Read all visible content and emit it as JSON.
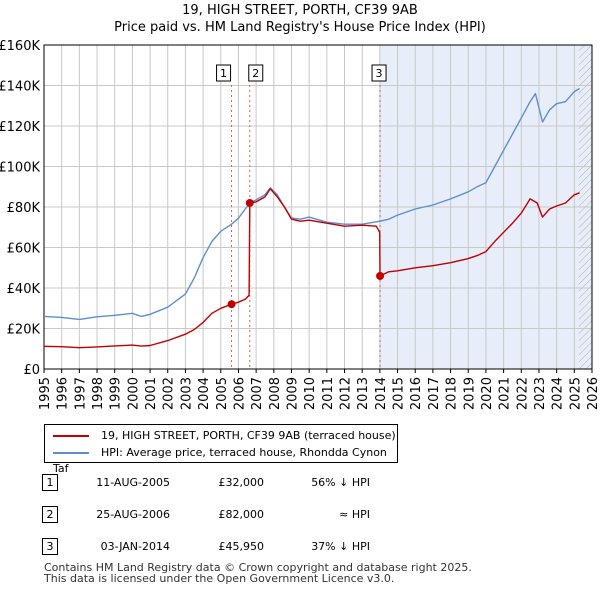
{
  "title": {
    "line1": "19, HIGH STREET, PORTH, CF39 9AB",
    "line2": "Price paid vs. HM Land Registry's House Price Index (HPI)"
  },
  "colors": {
    "property": "#c00000",
    "hpi": "#5b8fd0",
    "shade": "#e8eef9",
    "grid": "#c8c8c8",
    "vline": "#d06060"
  },
  "chart_data": {
    "type": "line",
    "xlim": [
      1995,
      2026
    ],
    "ylim": [
      0,
      160000
    ],
    "x_ticks": [
      1995,
      1996,
      1997,
      1998,
      1999,
      2000,
      2001,
      2002,
      2003,
      2004,
      2005,
      2006,
      2007,
      2008,
      2009,
      2010,
      2011,
      2012,
      2013,
      2014,
      2015,
      2016,
      2017,
      2018,
      2019,
      2020,
      2021,
      2022,
      2023,
      2024,
      2025,
      2026
    ],
    "x_tick_labels": [
      "1995",
      "1996",
      "1997",
      "1998",
      "1999",
      "2000",
      "2001",
      "2002",
      "2003",
      "2004",
      "2005",
      "2006",
      "2007",
      "2008",
      "2009",
      "2010",
      "2011",
      "2012",
      "2013",
      "2014",
      "2015",
      "2016",
      "2017",
      "2018",
      "2019",
      "2020",
      "2021",
      "2022",
      "2023",
      "2024",
      "2025",
      "2026"
    ],
    "y_ticks": [
      0,
      20000,
      40000,
      60000,
      80000,
      100000,
      120000,
      140000,
      160000
    ],
    "y_tick_labels": [
      "£0",
      "£20K",
      "£40K",
      "£60K",
      "£80K",
      "£100K",
      "£120K",
      "£140K",
      "£160K"
    ],
    "shaded_region": [
      2014.01,
      2026
    ],
    "hatched_region": [
      2025.25,
      2026
    ],
    "series": [
      {
        "name": "19, HIGH STREET, PORTH, CF39 9AB (terraced house)",
        "color": "#c00000",
        "points": [
          [
            1995.0,
            11200
          ],
          [
            1996.0,
            11000
          ],
          [
            1997.0,
            10500
          ],
          [
            1998.0,
            10900
          ],
          [
            1999.0,
            11400
          ],
          [
            2000.0,
            11800
          ],
          [
            2000.5,
            11300
          ],
          [
            2001.0,
            11600
          ],
          [
            2002.0,
            14000
          ],
          [
            2003.0,
            17200
          ],
          [
            2003.5,
            19500
          ],
          [
            2004.0,
            23000
          ],
          [
            2004.5,
            27500
          ],
          [
            2005.0,
            30000
          ],
          [
            2005.61,
            32000
          ],
          [
            2006.0,
            33000
          ],
          [
            2006.4,
            34500
          ],
          [
            2006.6,
            36500
          ],
          [
            2006.64,
            82000
          ],
          [
            2007.0,
            82500
          ],
          [
            2007.5,
            85000
          ],
          [
            2007.8,
            89000
          ],
          [
            2008.2,
            85000
          ],
          [
            2008.6,
            80000
          ],
          [
            2009.0,
            74000
          ],
          [
            2009.5,
            73000
          ],
          [
            2010.0,
            73500
          ],
          [
            2011.0,
            72000
          ],
          [
            2012.0,
            70500
          ],
          [
            2013.0,
            71000
          ],
          [
            2013.8,
            70500
          ],
          [
            2013.99,
            67500
          ],
          [
            2014.01,
            45950
          ],
          [
            2014.5,
            48000
          ],
          [
            2015.0,
            48500
          ],
          [
            2016.0,
            50000
          ],
          [
            2017.0,
            51000
          ],
          [
            2018.0,
            52500
          ],
          [
            2019.0,
            54500
          ],
          [
            2019.5,
            56000
          ],
          [
            2020.0,
            58000
          ],
          [
            2020.5,
            63000
          ],
          [
            2021.0,
            67500
          ],
          [
            2021.5,
            72000
          ],
          [
            2022.0,
            77000
          ],
          [
            2022.5,
            84000
          ],
          [
            2022.9,
            82000
          ],
          [
            2023.2,
            75000
          ],
          [
            2023.6,
            79000
          ],
          [
            2024.0,
            80500
          ],
          [
            2024.5,
            82000
          ],
          [
            2025.0,
            86000
          ],
          [
            2025.3,
            87000
          ]
        ]
      },
      {
        "name": "HPI: Average price, terraced house, Rhondda Cynon Taf",
        "color": "#5b8fd0",
        "points": [
          [
            1995.0,
            26000
          ],
          [
            1996.0,
            25500
          ],
          [
            1997.0,
            24500
          ],
          [
            1998.0,
            25800
          ],
          [
            1999.0,
            26500
          ],
          [
            2000.0,
            27500
          ],
          [
            2000.5,
            26000
          ],
          [
            2001.0,
            27000
          ],
          [
            2002.0,
            30500
          ],
          [
            2003.0,
            37000
          ],
          [
            2003.5,
            45000
          ],
          [
            2004.0,
            55000
          ],
          [
            2004.5,
            63000
          ],
          [
            2005.0,
            68000
          ],
          [
            2005.61,
            71500
          ],
          [
            2006.0,
            74500
          ],
          [
            2006.64,
            82000
          ],
          [
            2007.0,
            83500
          ],
          [
            2007.5,
            86000
          ],
          [
            2007.8,
            89500
          ],
          [
            2008.2,
            86000
          ],
          [
            2008.6,
            80000
          ],
          [
            2009.0,
            74500
          ],
          [
            2009.5,
            74000
          ],
          [
            2010.0,
            75000
          ],
          [
            2011.0,
            72500
          ],
          [
            2012.0,
            71500
          ],
          [
            2013.0,
            71500
          ],
          [
            2014.01,
            73000
          ],
          [
            2014.5,
            74000
          ],
          [
            2015.0,
            76000
          ],
          [
            2016.0,
            79000
          ],
          [
            2017.0,
            81000
          ],
          [
            2018.0,
            84000
          ],
          [
            2019.0,
            87500
          ],
          [
            2019.5,
            90000
          ],
          [
            2020.0,
            92000
          ],
          [
            2020.5,
            100000
          ],
          [
            2021.0,
            108000
          ],
          [
            2021.5,
            116000
          ],
          [
            2022.0,
            124000
          ],
          [
            2022.5,
            132000
          ],
          [
            2022.8,
            136000
          ],
          [
            2023.2,
            122000
          ],
          [
            2023.6,
            128000
          ],
          [
            2024.0,
            131000
          ],
          [
            2024.5,
            132000
          ],
          [
            2025.0,
            137000
          ],
          [
            2025.3,
            138500
          ]
        ]
      }
    ],
    "markers": [
      {
        "label": "1",
        "x": 2005.61,
        "y": 32000
      },
      {
        "label": "2",
        "x": 2006.64,
        "y": 82000
      },
      {
        "label": "3",
        "x": 2014.01,
        "y": 45950
      }
    ]
  },
  "legend": {
    "property_label": "19, HIGH STREET, PORTH, CF39 9AB (terraced house)",
    "hpi_label": "HPI: Average price, terraced house, Rhondda Cynon Taf"
  },
  "sales": [
    {
      "num": "1",
      "date": "11-AUG-2005",
      "price": "£32,000",
      "hpi_rel": "56% ↓ HPI"
    },
    {
      "num": "2",
      "date": "25-AUG-2006",
      "price": "£82,000",
      "hpi_rel": "≈ HPI"
    },
    {
      "num": "3",
      "date": "03-JAN-2014",
      "price": "£45,950",
      "hpi_rel": "37% ↓ HPI"
    }
  ],
  "footer": {
    "line1": "Contains HM Land Registry data © Crown copyright and database right 2025.",
    "line2": "This data is licensed under the Open Government Licence v3.0."
  }
}
